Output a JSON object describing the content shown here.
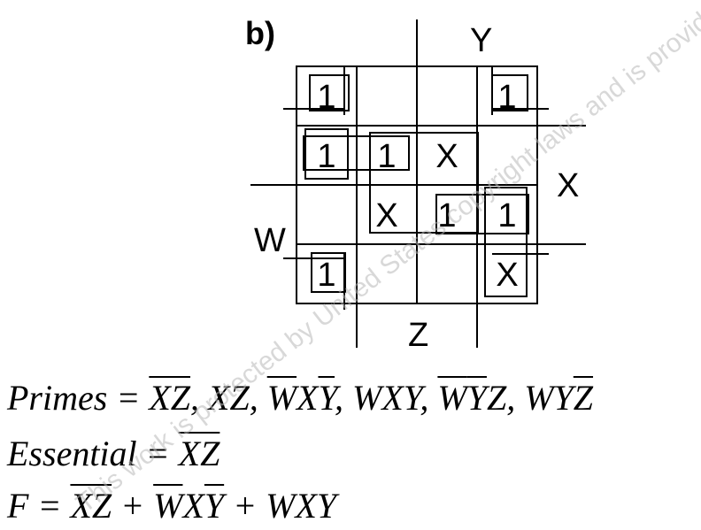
{
  "part_label": "b)",
  "kmap": {
    "cells": [
      [
        "1",
        "",
        "",
        "1"
      ],
      [
        "1",
        "1",
        "X",
        ""
      ],
      [
        "",
        "X",
        "1",
        "1"
      ],
      [
        "1",
        "",
        "",
        "X"
      ]
    ],
    "variables": {
      "Y": "Y",
      "X": "X",
      "W": "W",
      "Z": "Z"
    }
  },
  "equations": {
    "primes": {
      "label": "Primes",
      "eq": " = ",
      "t1": "XZ",
      "sep1": ", ",
      "t2": "XZ",
      "sep2": ", ",
      "t3a": "W",
      "t3b": "X",
      "t3c": "Y",
      "sep3": ", ",
      "t4": "WXY",
      "sep4": ", ",
      "t5a": "W",
      "t5b": "Y",
      "t5c": "Z",
      "sep5": ", ",
      "t6a": "WY",
      "t6b": "Z"
    },
    "essential": {
      "label": "Essential",
      "eq": " = ",
      "t1": "XZ"
    },
    "function": {
      "label": "F",
      "eq": " = ",
      "t1": "XZ",
      "plus1": " + ",
      "t2a": "W",
      "t2b": "X",
      "t2c": "Y",
      "plus2": " + ",
      "t3": "WXY"
    }
  },
  "watermark": "This work is protected by United States copyright laws and is provided solely for the use of instructors in teaching their courses and assessing student learning. Dissemination or sale of any part of this work (including on the World Wide Web) will destroy the integrity of the work and is not permitted."
}
